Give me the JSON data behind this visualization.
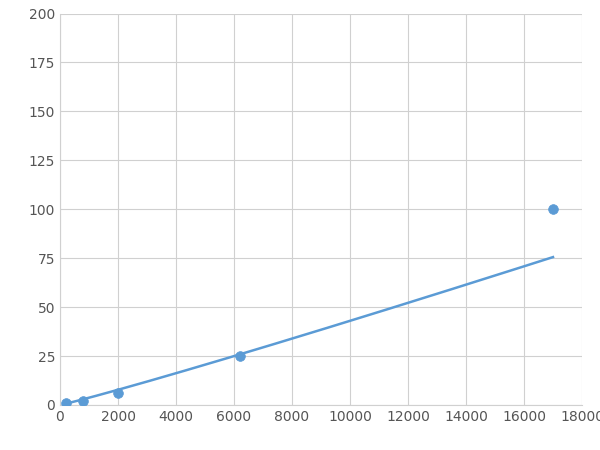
{
  "x": [
    200,
    800,
    2000,
    6200,
    17000
  ],
  "y": [
    1,
    2,
    6,
    25,
    100
  ],
  "line_color": "#5b9bd5",
  "marker_color": "#5b9bd5",
  "marker_size": 7,
  "line_width": 1.8,
  "xlim": [
    0,
    18000
  ],
  "ylim": [
    0,
    200
  ],
  "xticks": [
    0,
    2000,
    4000,
    6000,
    8000,
    10000,
    12000,
    14000,
    16000,
    18000
  ],
  "yticks": [
    0,
    25,
    50,
    75,
    100,
    125,
    150,
    175,
    200
  ],
  "grid_color": "#d0d0d0",
  "bg_color": "#ffffff",
  "figure_bg": "#ffffff",
  "tick_fontsize": 10,
  "tick_color": "#555555"
}
